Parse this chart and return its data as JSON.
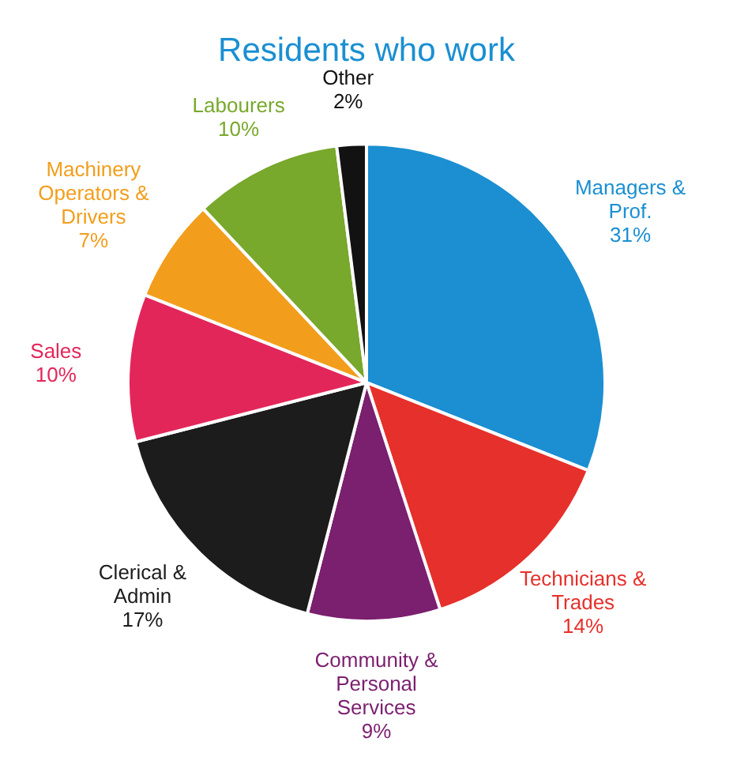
{
  "chart_data": {
    "type": "pie",
    "title": "Residents who work",
    "categories": [
      "Managers & Prof.",
      "Technicians & Trades",
      "Community & Personal Services",
      "Clerical & Admin",
      "Sales",
      "Machinery Operators & Drivers",
      "Labourers",
      "Other"
    ],
    "values": [
      31,
      14,
      9,
      17,
      10,
      7,
      10,
      2
    ],
    "colors": [
      "#1b8fd2",
      "#e6302b",
      "#7b1f6f",
      "#1c1c1c",
      "#e3265a",
      "#f29e1c",
      "#78a82c",
      "#121212"
    ],
    "value_labels": [
      "31%",
      "14%",
      "9%",
      "17%",
      "10%",
      "7%",
      "10%",
      "2%"
    ],
    "legend": false
  }
}
